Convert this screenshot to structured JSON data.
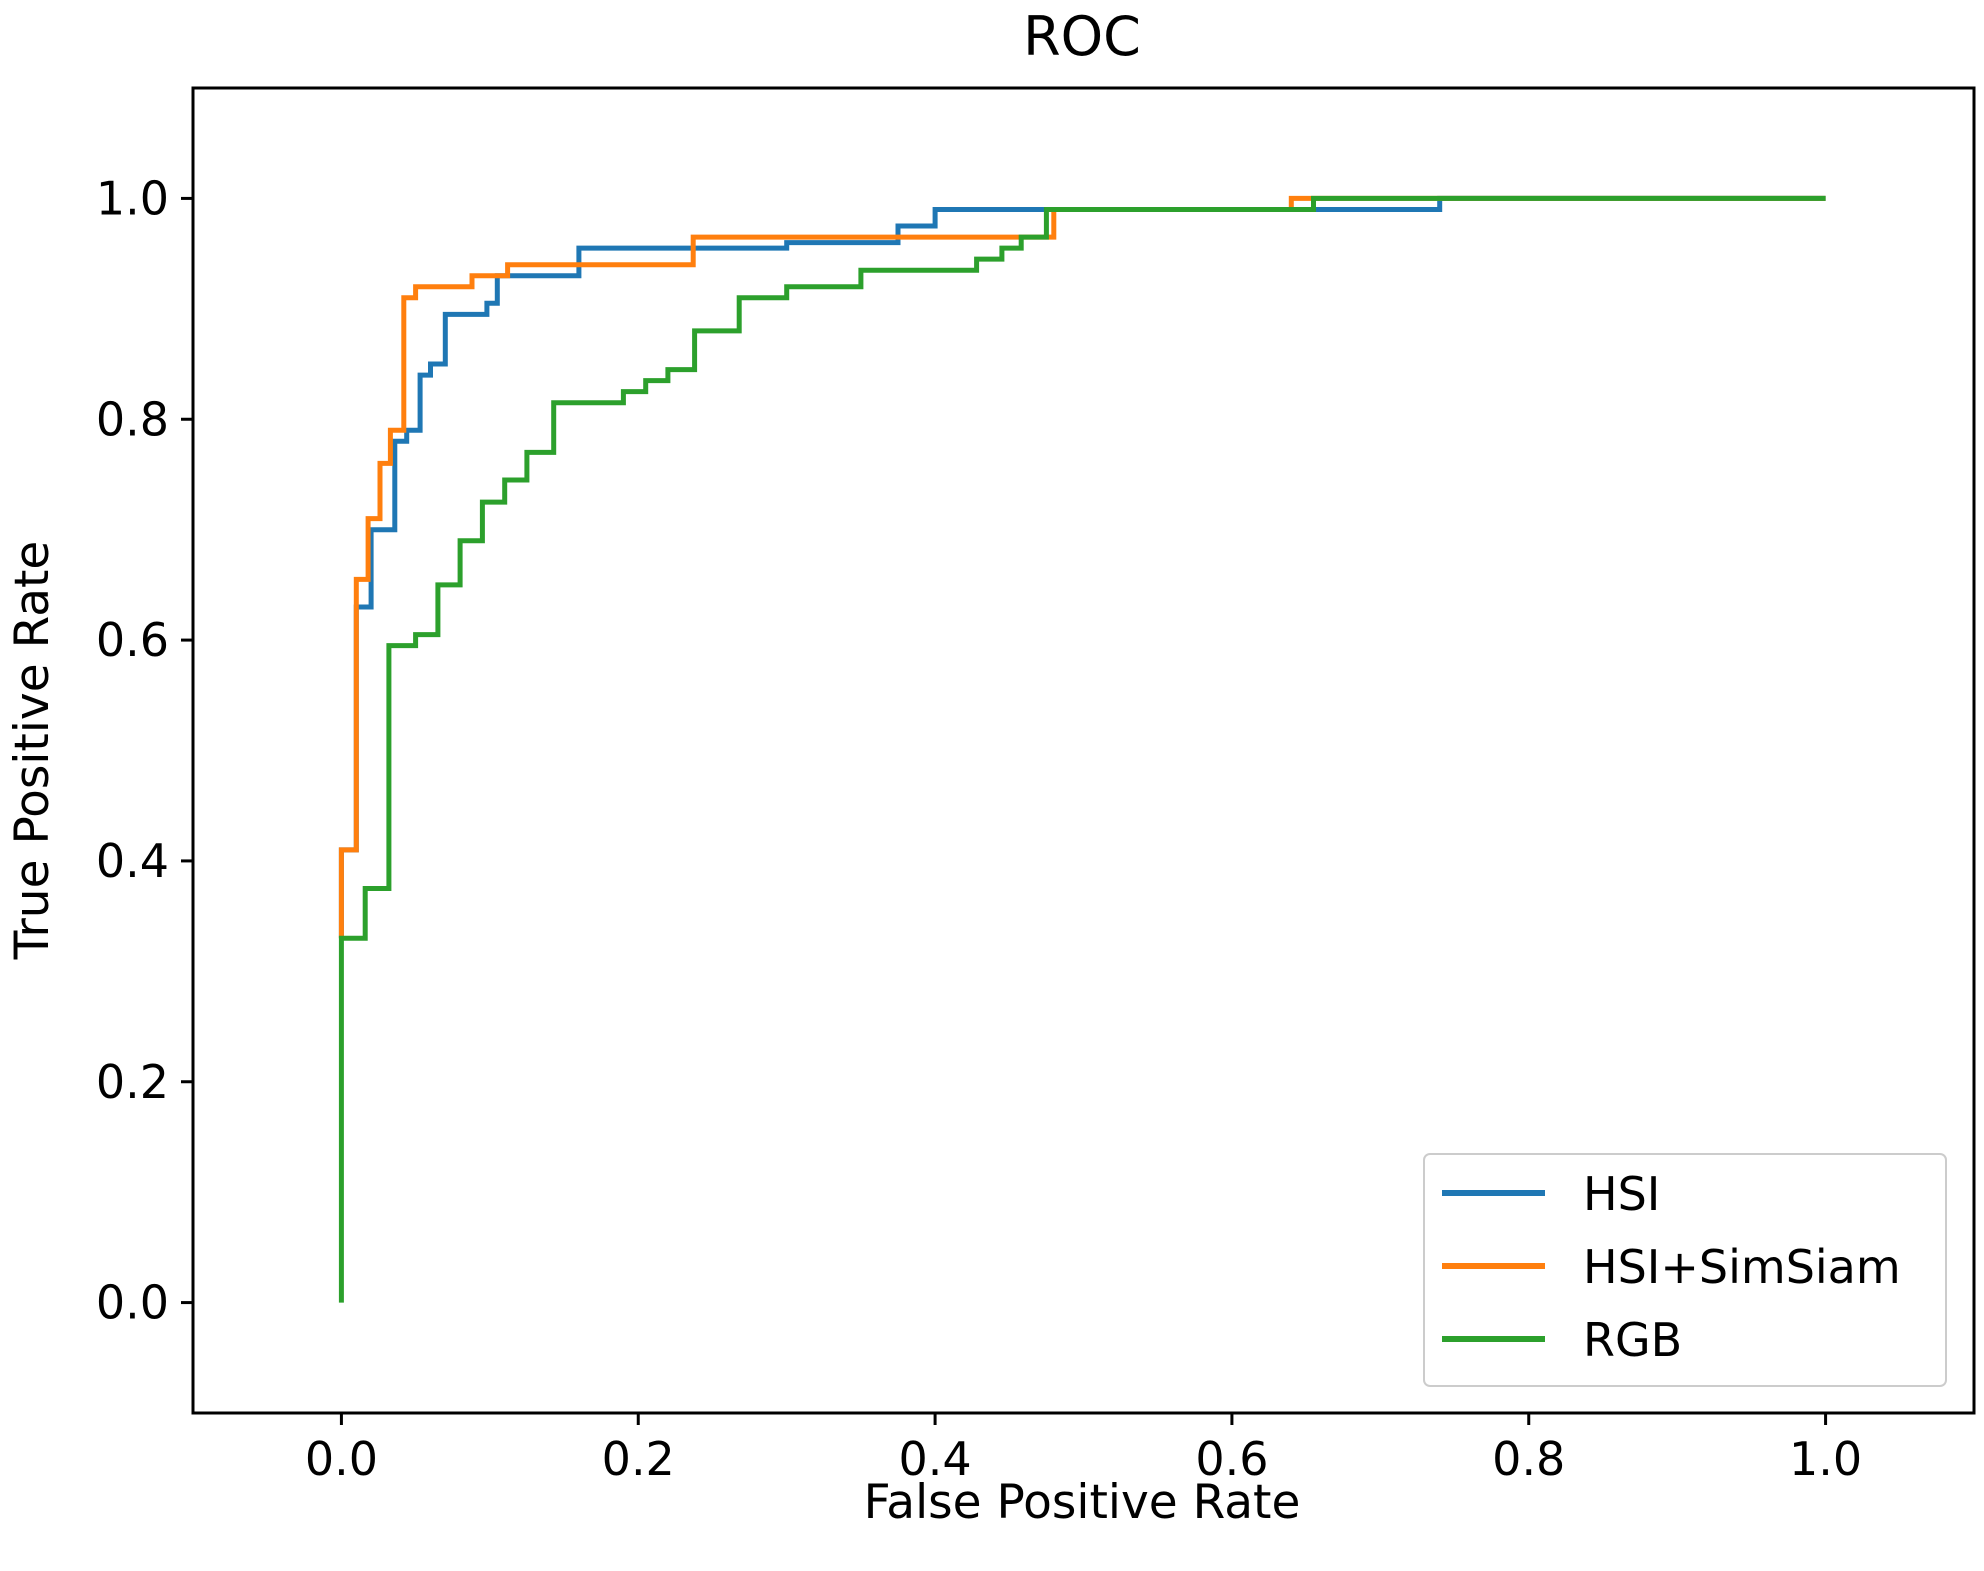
{
  "chart_data": {
    "type": "line",
    "title": "ROC",
    "xlabel": "False Positive Rate",
    "ylabel": "True Positive Rate",
    "xlim": [
      -0.1,
      1.1
    ],
    "ylim": [
      -0.1,
      1.1
    ],
    "xticks": [
      "0.0",
      "0.2",
      "0.4",
      "0.6",
      "0.8",
      "1.0"
    ],
    "yticks": [
      "0.0",
      "0.2",
      "0.4",
      "0.6",
      "0.8",
      "1.0"
    ],
    "grid": false,
    "legend_position": "lower-right",
    "series": [
      {
        "name": "HSI",
        "color": "#1f77b4",
        "points": [
          [
            0.0,
            0.33
          ],
          [
            0.0,
            0.41
          ],
          [
            0.01,
            0.41
          ],
          [
            0.01,
            0.63
          ],
          [
            0.02,
            0.63
          ],
          [
            0.02,
            0.7
          ],
          [
            0.036,
            0.7
          ],
          [
            0.036,
            0.78
          ],
          [
            0.044,
            0.78
          ],
          [
            0.044,
            0.79
          ],
          [
            0.053,
            0.79
          ],
          [
            0.053,
            0.84
          ],
          [
            0.06,
            0.84
          ],
          [
            0.06,
            0.85
          ],
          [
            0.07,
            0.85
          ],
          [
            0.07,
            0.895
          ],
          [
            0.098,
            0.895
          ],
          [
            0.098,
            0.905
          ],
          [
            0.105,
            0.905
          ],
          [
            0.105,
            0.93
          ],
          [
            0.16,
            0.93
          ],
          [
            0.16,
            0.955
          ],
          [
            0.3,
            0.955
          ],
          [
            0.3,
            0.96
          ],
          [
            0.375,
            0.96
          ],
          [
            0.375,
            0.975
          ],
          [
            0.4,
            0.975
          ],
          [
            0.4,
            0.99
          ],
          [
            0.74,
            0.99
          ],
          [
            0.74,
            1.0
          ],
          [
            1.0,
            1.0
          ]
        ]
      },
      {
        "name": "HSI+SimSiam",
        "color": "#ff7f0e",
        "points": [
          [
            0.0,
            0.33
          ],
          [
            0.0,
            0.41
          ],
          [
            0.01,
            0.41
          ],
          [
            0.01,
            0.655
          ],
          [
            0.018,
            0.655
          ],
          [
            0.018,
            0.71
          ],
          [
            0.026,
            0.71
          ],
          [
            0.026,
            0.76
          ],
          [
            0.033,
            0.76
          ],
          [
            0.033,
            0.79
          ],
          [
            0.042,
            0.79
          ],
          [
            0.042,
            0.91
          ],
          [
            0.05,
            0.91
          ],
          [
            0.05,
            0.92
          ],
          [
            0.088,
            0.92
          ],
          [
            0.088,
            0.93
          ],
          [
            0.112,
            0.93
          ],
          [
            0.112,
            0.94
          ],
          [
            0.237,
            0.94
          ],
          [
            0.237,
            0.965
          ],
          [
            0.48,
            0.965
          ],
          [
            0.48,
            0.99
          ],
          [
            0.64,
            0.99
          ],
          [
            0.64,
            1.0
          ],
          [
            1.0,
            1.0
          ]
        ]
      },
      {
        "name": "RGB",
        "color": "#2ca02c",
        "points": [
          [
            0.0,
            0.0
          ],
          [
            0.0,
            0.33
          ],
          [
            0.016,
            0.33
          ],
          [
            0.016,
            0.375
          ],
          [
            0.032,
            0.375
          ],
          [
            0.032,
            0.595
          ],
          [
            0.05,
            0.595
          ],
          [
            0.05,
            0.605
          ],
          [
            0.065,
            0.605
          ],
          [
            0.065,
            0.65
          ],
          [
            0.08,
            0.65
          ],
          [
            0.08,
            0.69
          ],
          [
            0.095,
            0.69
          ],
          [
            0.095,
            0.725
          ],
          [
            0.11,
            0.725
          ],
          [
            0.11,
            0.745
          ],
          [
            0.125,
            0.745
          ],
          [
            0.125,
            0.77
          ],
          [
            0.143,
            0.77
          ],
          [
            0.143,
            0.815
          ],
          [
            0.19,
            0.815
          ],
          [
            0.19,
            0.825
          ],
          [
            0.205,
            0.825
          ],
          [
            0.205,
            0.835
          ],
          [
            0.22,
            0.835
          ],
          [
            0.22,
            0.845
          ],
          [
            0.238,
            0.845
          ],
          [
            0.238,
            0.88
          ],
          [
            0.268,
            0.88
          ],
          [
            0.268,
            0.91
          ],
          [
            0.3,
            0.91
          ],
          [
            0.3,
            0.92
          ],
          [
            0.35,
            0.92
          ],
          [
            0.35,
            0.935
          ],
          [
            0.428,
            0.935
          ],
          [
            0.428,
            0.945
          ],
          [
            0.445,
            0.945
          ],
          [
            0.445,
            0.955
          ],
          [
            0.458,
            0.955
          ],
          [
            0.458,
            0.965
          ],
          [
            0.475,
            0.965
          ],
          [
            0.475,
            0.99
          ],
          [
            0.655,
            0.99
          ],
          [
            0.655,
            1.0
          ],
          [
            1.0,
            1.0
          ]
        ]
      }
    ]
  }
}
